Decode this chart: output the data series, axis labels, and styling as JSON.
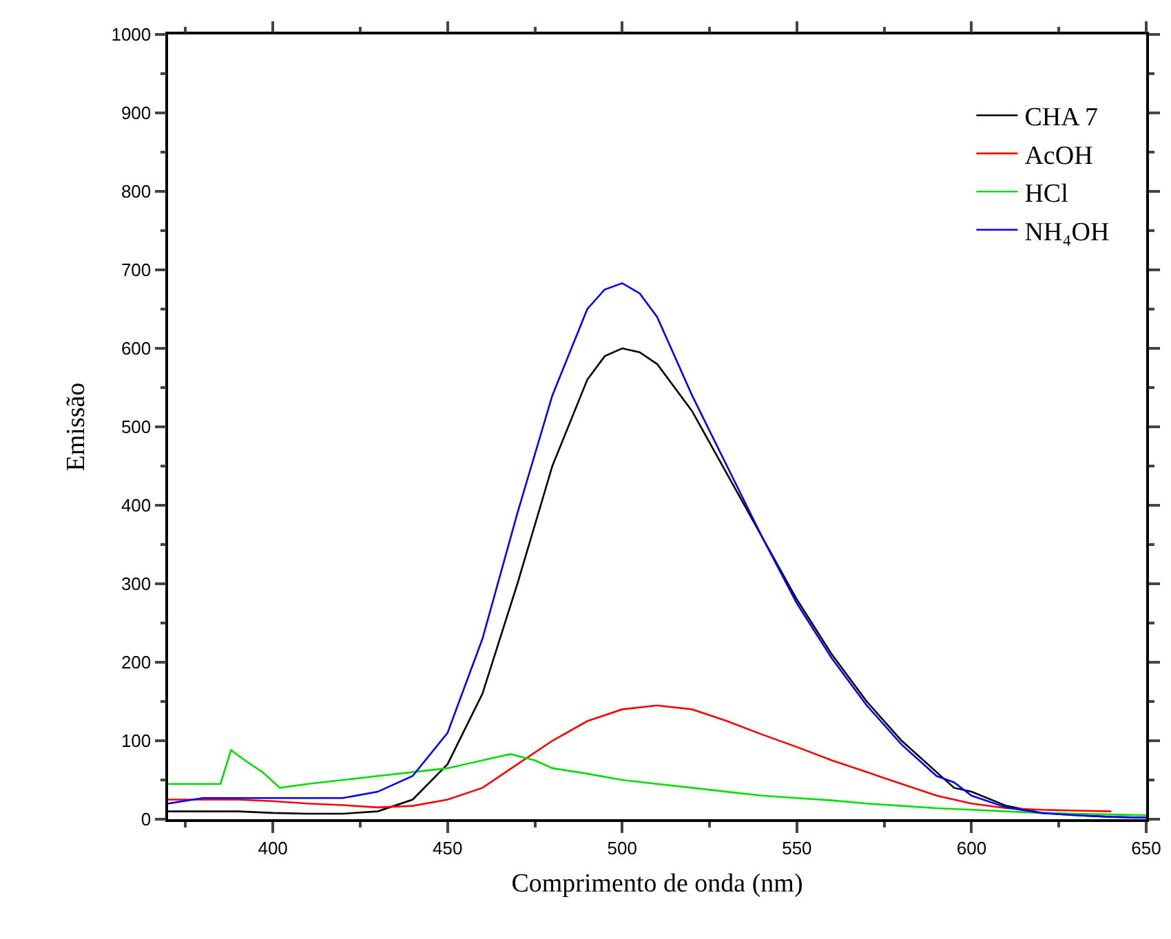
{
  "chart_data": {
    "type": "line",
    "xlabel": "Comprimento de onda (nm)",
    "ylabel": "Emissão",
    "xlim": [
      370,
      650
    ],
    "ylim": [
      0,
      1000
    ],
    "xticks": [
      400,
      450,
      500,
      550,
      600,
      650
    ],
    "yticks": [
      0,
      100,
      200,
      300,
      400,
      500,
      600,
      700,
      800,
      900,
      1000
    ],
    "grid": false,
    "legend": "top right",
    "marker": "none",
    "line_style": "solid",
    "series": [
      {
        "name": "CHA 7",
        "color": "#000000",
        "x": [
          370,
          380,
          390,
          400,
          410,
          420,
          430,
          440,
          450,
          460,
          470,
          480,
          490,
          495,
          500,
          505,
          510,
          520,
          530,
          540,
          550,
          560,
          570,
          580,
          590,
          595,
          600,
          610,
          620,
          630,
          640,
          650
        ],
        "values": [
          10,
          10,
          10,
          8,
          7,
          7,
          10,
          25,
          70,
          160,
          300,
          450,
          560,
          590,
          600,
          595,
          580,
          520,
          440,
          360,
          280,
          210,
          150,
          100,
          60,
          40,
          35,
          17,
          8,
          5,
          3,
          2
        ]
      },
      {
        "name": "AcOH",
        "color": "#ff0000",
        "x": [
          370,
          380,
          390,
          400,
          410,
          420,
          430,
          440,
          450,
          460,
          470,
          480,
          490,
          500,
          510,
          520,
          530,
          540,
          550,
          560,
          570,
          580,
          590,
          600,
          610,
          620,
          630,
          640
        ],
        "values": [
          25,
          25,
          25,
          23,
          20,
          18,
          15,
          17,
          25,
          40,
          70,
          100,
          125,
          140,
          145,
          140,
          125,
          108,
          92,
          75,
          60,
          45,
          30,
          20,
          14,
          12,
          11,
          10
        ]
      },
      {
        "name": "HCl",
        "color": "#00e000",
        "x": [
          370,
          380,
          385,
          388,
          392,
          397,
          402,
          410,
          420,
          430,
          440,
          450,
          460,
          468,
          475,
          480,
          490,
          500,
          510,
          520,
          530,
          540,
          550,
          560,
          570,
          580,
          590,
          600,
          610,
          620,
          630,
          640,
          650
        ],
        "values": [
          45,
          45,
          45,
          88,
          75,
          60,
          40,
          45,
          50,
          55,
          60,
          65,
          75,
          83,
          75,
          65,
          58,
          50,
          45,
          40,
          35,
          30,
          27,
          24,
          20,
          17,
          14,
          12,
          10,
          8,
          7,
          6,
          5
        ]
      },
      {
        "name": "NH₄OH",
        "color": "#0000ff",
        "x": [
          370,
          380,
          390,
          400,
          410,
          420,
          430,
          440,
          450,
          460,
          470,
          480,
          490,
          495,
          500,
          505,
          510,
          520,
          530,
          540,
          550,
          560,
          570,
          580,
          590,
          595,
          600,
          610,
          620,
          630,
          640,
          650
        ],
        "values": [
          20,
          27,
          27,
          27,
          27,
          27,
          35,
          55,
          110,
          230,
          390,
          540,
          650,
          675,
          683,
          670,
          640,
          540,
          450,
          360,
          275,
          205,
          145,
          95,
          55,
          47,
          30,
          15,
          8,
          5,
          3,
          2
        ]
      }
    ]
  }
}
